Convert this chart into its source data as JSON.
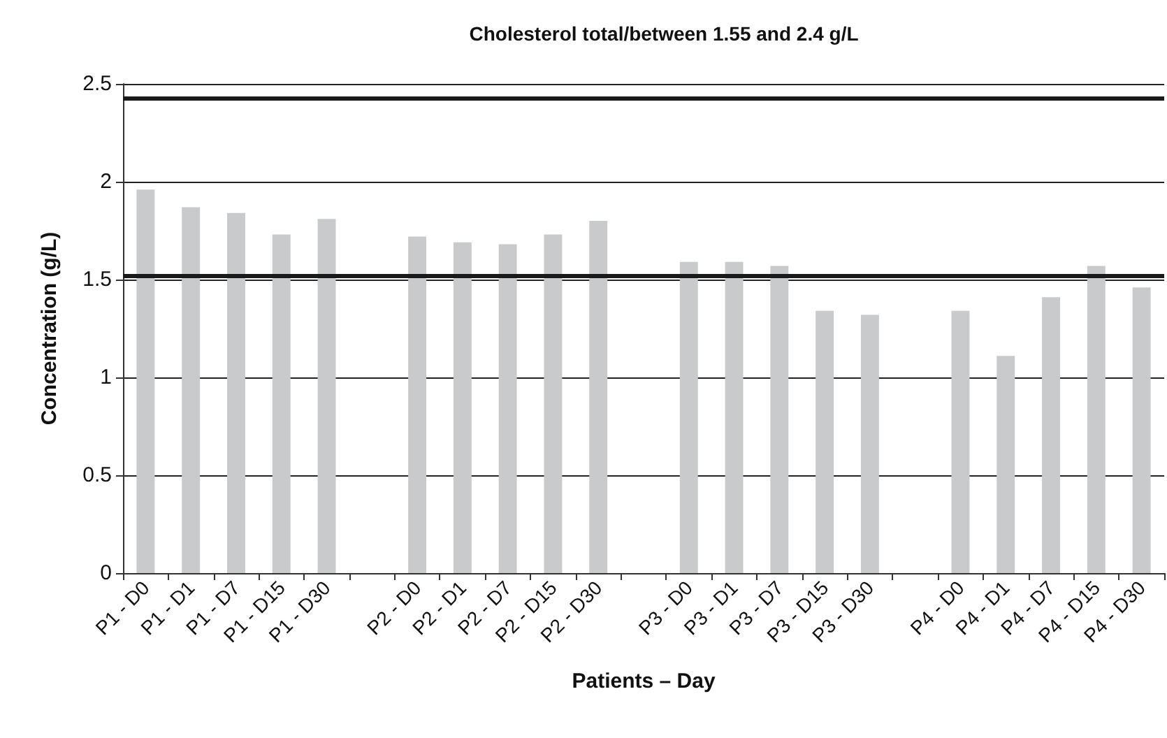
{
  "chart_data": {
    "type": "bar",
    "title": "Cholesterol total/between 1.55 and 2.4 g/L",
    "xlabel": "Patients – Day",
    "ylabel": "Concentration (g/L)",
    "categories": [
      "P1 - D0",
      "P1 - D1",
      "P1 - D7",
      "P1 - D15",
      "P1 - D30",
      null,
      "P2 - D0",
      "P2 - D1",
      "P2 - D7",
      "P2 - D15",
      "P2 - D30",
      null,
      "P3 - D0",
      "P3 - D1",
      "P3 - D7",
      "P3 - D15",
      "P3 - D30",
      null,
      "P4 - D0",
      "P4 - D1",
      "P4 - D7",
      "P4 - D15",
      "P4 - D30"
    ],
    "values": [
      1.96,
      1.87,
      1.84,
      1.73,
      1.81,
      null,
      1.72,
      1.69,
      1.68,
      1.73,
      1.8,
      null,
      1.59,
      1.59,
      1.57,
      1.34,
      1.32,
      null,
      1.34,
      1.11,
      1.41,
      1.57,
      1.46
    ],
    "color": "#c9cacc",
    "ylim": [
      0,
      2.5
    ],
    "yticks": [
      0,
      0.5,
      1,
      1.5,
      2,
      2.5
    ],
    "grid": "y",
    "ref_lines": [
      {
        "axis": "y",
        "value": 2.43,
        "color": "#1a1a1a"
      },
      {
        "axis": "y",
        "value": 1.52,
        "color": "#1a1a1a"
      }
    ]
  }
}
